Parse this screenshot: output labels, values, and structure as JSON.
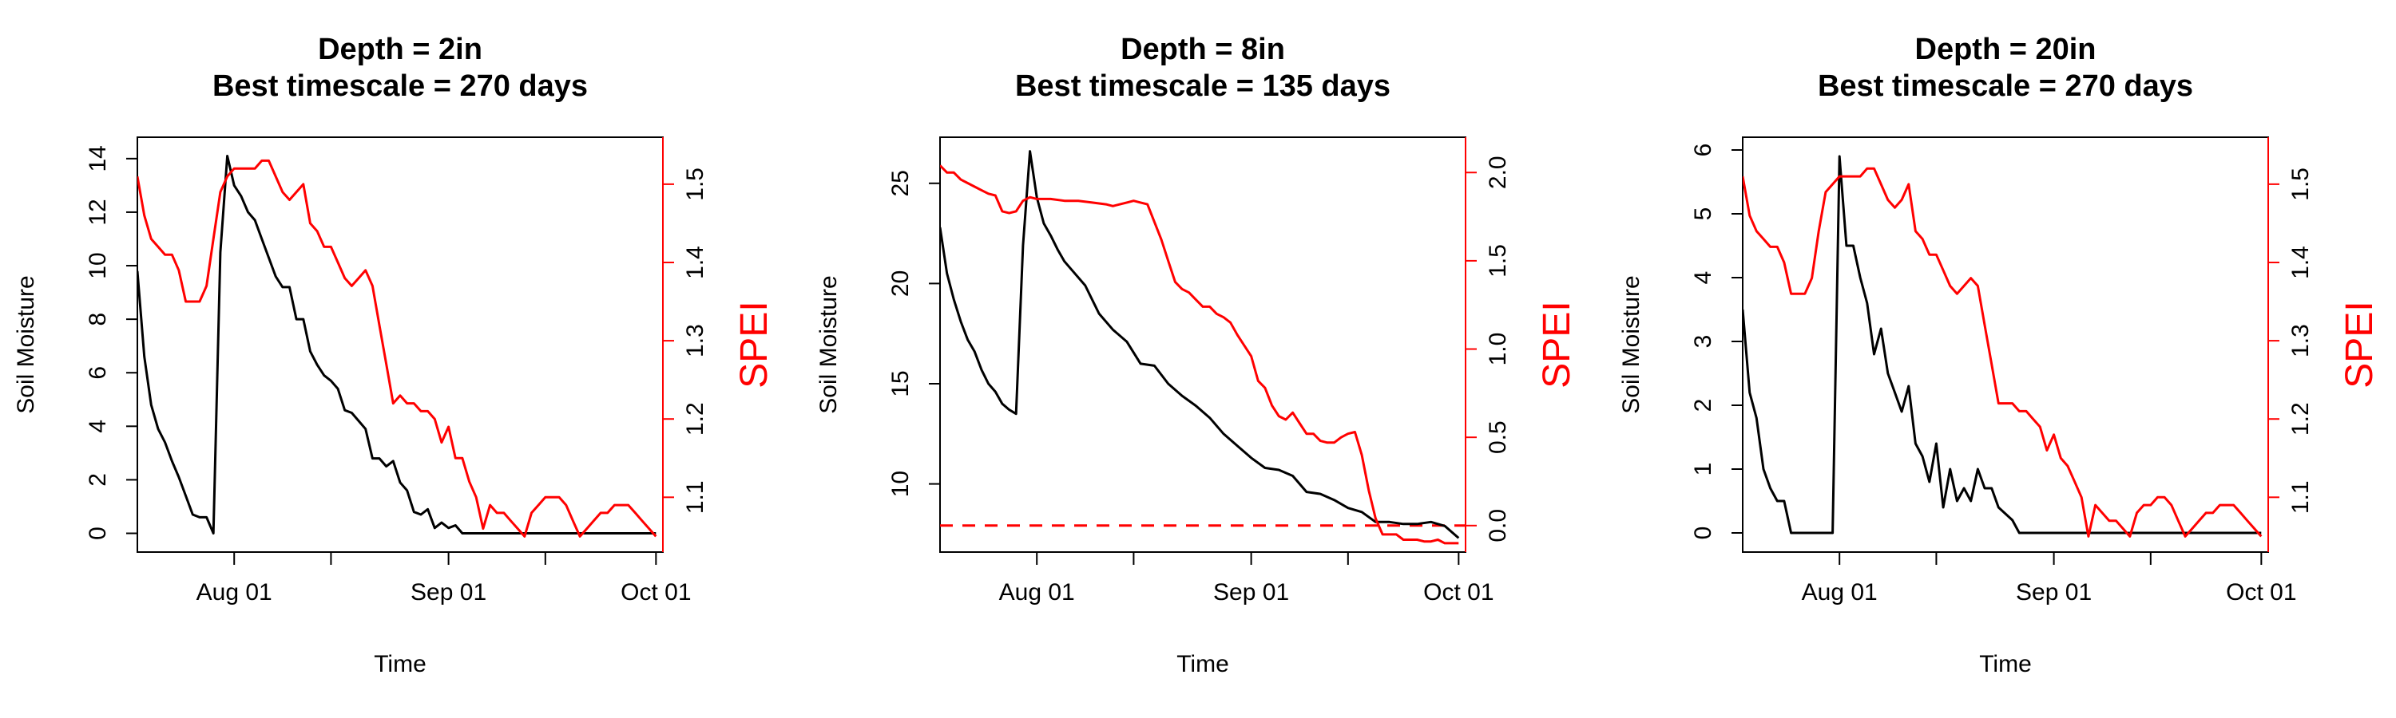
{
  "colors": {
    "soil_moisture": "#000000",
    "spei": "#ff0000"
  },
  "chart_data": [
    {
      "type": "line",
      "title": [
        "Depth = 2in",
        "Best timescale = 270 days"
      ],
      "xlabel": "Time",
      "ylabel": "Soil Moisture",
      "y2label": "SPEI",
      "x_ticks": [
        "Aug 01",
        "Sep 01",
        "Oct 01"
      ],
      "x_unlabeled_ticks": [
        "2018-08-15",
        "2018-09-15"
      ],
      "xlim": [
        "2018-07-18",
        "2018-10-02"
      ],
      "ylim": [
        -0.7,
        14.8
      ],
      "y_ticks": [
        0,
        2,
        4,
        6,
        8,
        10,
        12,
        14
      ],
      "y2lim": [
        1.03,
        1.56
      ],
      "y2_ticks": [
        1.1,
        1.2,
        1.3,
        1.4,
        1.5
      ],
      "series": [
        {
          "axis": "left",
          "color": "#000000",
          "x": [
            "2018-07-18",
            "2018-07-19",
            "2018-07-20",
            "2018-07-21",
            "2018-07-22",
            "2018-07-23",
            "2018-07-24",
            "2018-07-25",
            "2018-07-26",
            "2018-07-27",
            "2018-07-28",
            "2018-07-29",
            "2018-07-30",
            "2018-07-31",
            "2018-08-01",
            "2018-08-02",
            "2018-08-03",
            "2018-08-04",
            "2018-08-05",
            "2018-08-06",
            "2018-08-07",
            "2018-08-08",
            "2018-08-09",
            "2018-08-10",
            "2018-08-11",
            "2018-08-12",
            "2018-08-13",
            "2018-08-14",
            "2018-08-15",
            "2018-08-16",
            "2018-08-17",
            "2018-08-18",
            "2018-08-19",
            "2018-08-20",
            "2018-08-21",
            "2018-08-22",
            "2018-08-23",
            "2018-08-24",
            "2018-08-25",
            "2018-08-26",
            "2018-08-27",
            "2018-08-28",
            "2018-08-29",
            "2018-08-30",
            "2018-08-31",
            "2018-09-01",
            "2018-09-02",
            "2018-09-03",
            "2018-09-04",
            "2018-09-05",
            "2018-09-06",
            "2018-09-07",
            "2018-09-08",
            "2018-09-09",
            "2018-09-10",
            "2018-09-15",
            "2018-09-20",
            "2018-09-25",
            "2018-09-30",
            "2018-10-01"
          ],
          "y": [
            9.8,
            6.6,
            4.8,
            3.9,
            3.4,
            2.7,
            2.1,
            1.4,
            0.7,
            0.6,
            0.6,
            0.0,
            10.5,
            14.1,
            13.0,
            12.6,
            12.0,
            11.7,
            11.0,
            10.3,
            9.6,
            9.2,
            9.2,
            8.0,
            8.0,
            6.8,
            6.3,
            5.9,
            5.7,
            5.4,
            4.6,
            4.5,
            4.2,
            3.9,
            2.8,
            2.8,
            2.5,
            2.7,
            1.9,
            1.6,
            0.8,
            0.7,
            0.9,
            0.2,
            0.4,
            0.2,
            0.3,
            0.0,
            0.0,
            0.0,
            0.0,
            0.0,
            0.0,
            0.0,
            0.0,
            0.0,
            0.0,
            0.0,
            0.0,
            0.0
          ]
        },
        {
          "axis": "right",
          "color": "#ff0000",
          "x": [
            "2018-07-18",
            "2018-07-19",
            "2018-07-20",
            "2018-07-21",
            "2018-07-22",
            "2018-07-23",
            "2018-07-24",
            "2018-07-25",
            "2018-07-26",
            "2018-07-27",
            "2018-07-28",
            "2018-07-29",
            "2018-07-30",
            "2018-07-31",
            "2018-08-01",
            "2018-08-02",
            "2018-08-03",
            "2018-08-04",
            "2018-08-05",
            "2018-08-06",
            "2018-08-07",
            "2018-08-08",
            "2018-08-09",
            "2018-08-10",
            "2018-08-11",
            "2018-08-12",
            "2018-08-13",
            "2018-08-14",
            "2018-08-15",
            "2018-08-16",
            "2018-08-17",
            "2018-08-18",
            "2018-08-19",
            "2018-08-20",
            "2018-08-21",
            "2018-08-22",
            "2018-08-23",
            "2018-08-24",
            "2018-08-25",
            "2018-08-26",
            "2018-08-27",
            "2018-08-28",
            "2018-08-29",
            "2018-08-30",
            "2018-08-31",
            "2018-09-01",
            "2018-09-02",
            "2018-09-03",
            "2018-09-04",
            "2018-09-05",
            "2018-09-06",
            "2018-09-07",
            "2018-09-08",
            "2018-09-09",
            "2018-09-10",
            "2018-09-11",
            "2018-09-12",
            "2018-09-13",
            "2018-09-14",
            "2018-09-15",
            "2018-09-16",
            "2018-09-17",
            "2018-09-18",
            "2018-09-19",
            "2018-09-20",
            "2018-09-21",
            "2018-09-22",
            "2018-09-23",
            "2018-09-24",
            "2018-09-25",
            "2018-09-26",
            "2018-09-27",
            "2018-09-28",
            "2018-09-29",
            "2018-09-30",
            "2018-10-01"
          ],
          "y": [
            1.51,
            1.46,
            1.43,
            1.42,
            1.41,
            1.41,
            1.39,
            1.35,
            1.35,
            1.35,
            1.37,
            1.43,
            1.49,
            1.51,
            1.52,
            1.52,
            1.52,
            1.52,
            1.53,
            1.53,
            1.51,
            1.49,
            1.48,
            1.49,
            1.5,
            1.45,
            1.44,
            1.42,
            1.42,
            1.4,
            1.38,
            1.37,
            1.38,
            1.39,
            1.37,
            1.32,
            1.27,
            1.22,
            1.23,
            1.22,
            1.22,
            1.21,
            1.21,
            1.2,
            1.17,
            1.19,
            1.15,
            1.15,
            1.12,
            1.1,
            1.06,
            1.09,
            1.08,
            1.08,
            1.07,
            1.06,
            1.05,
            1.08,
            1.09,
            1.1,
            1.1,
            1.1,
            1.09,
            1.07,
            1.05,
            1.06,
            1.07,
            1.08,
            1.08,
            1.09,
            1.09,
            1.09,
            1.08,
            1.07,
            1.06,
            1.05
          ]
        }
      ]
    },
    {
      "type": "line",
      "title": [
        "Depth = 8in",
        "Best timescale = 135 days"
      ],
      "xlabel": "Time",
      "ylabel": "Soil Moisture",
      "y2label": "SPEI",
      "x_ticks": [
        "Aug 01",
        "Sep 01",
        "Oct 01"
      ],
      "x_unlabeled_ticks": [
        "2018-08-15",
        "2018-09-15"
      ],
      "xlim": [
        "2018-07-18",
        "2018-10-02"
      ],
      "ylim": [
        6.6,
        27.3
      ],
      "y_ticks": [
        10,
        15,
        20,
        25
      ],
      "y2lim": [
        -0.15,
        2.2
      ],
      "y2_ticks": [
        0.0,
        0.5,
        1.0,
        1.5,
        2.0
      ],
      "reference_line": {
        "axis": "right",
        "y": 0.0,
        "style": "dashed",
        "color": "#ff0000"
      },
      "series": [
        {
          "axis": "left",
          "color": "#000000",
          "x": [
            "2018-07-18",
            "2018-07-19",
            "2018-07-20",
            "2018-07-21",
            "2018-07-22",
            "2018-07-23",
            "2018-07-24",
            "2018-07-25",
            "2018-07-26",
            "2018-07-27",
            "2018-07-28",
            "2018-07-29",
            "2018-07-30",
            "2018-07-31",
            "2018-08-01",
            "2018-08-02",
            "2018-08-03",
            "2018-08-04",
            "2018-08-05",
            "2018-08-06",
            "2018-08-08",
            "2018-08-10",
            "2018-08-12",
            "2018-08-14",
            "2018-08-16",
            "2018-08-18",
            "2018-08-20",
            "2018-08-22",
            "2018-08-24",
            "2018-08-26",
            "2018-08-28",
            "2018-08-30",
            "2018-09-01",
            "2018-09-03",
            "2018-09-05",
            "2018-09-07",
            "2018-09-09",
            "2018-09-11",
            "2018-09-13",
            "2018-09-15",
            "2018-09-17",
            "2018-09-19",
            "2018-09-21",
            "2018-09-23",
            "2018-09-25",
            "2018-09-27",
            "2018-09-29",
            "2018-09-30",
            "2018-10-01"
          ],
          "y": [
            22.8,
            20.5,
            19.2,
            18.1,
            17.2,
            16.6,
            15.7,
            15.0,
            14.6,
            14.0,
            13.7,
            13.5,
            21.9,
            26.6,
            24.3,
            23.0,
            22.4,
            21.7,
            21.1,
            20.7,
            19.9,
            18.5,
            17.7,
            17.1,
            16.0,
            15.9,
            15.0,
            14.4,
            13.9,
            13.3,
            12.5,
            11.9,
            11.3,
            10.8,
            10.7,
            10.4,
            9.6,
            9.5,
            9.2,
            8.8,
            8.6,
            8.1,
            8.1,
            8.0,
            8.0,
            8.1,
            7.9,
            7.6,
            7.3
          ]
        },
        {
          "axis": "right",
          "color": "#ff0000",
          "x": [
            "2018-07-18",
            "2018-07-19",
            "2018-07-20",
            "2018-07-21",
            "2018-07-22",
            "2018-07-23",
            "2018-07-24",
            "2018-07-25",
            "2018-07-26",
            "2018-07-27",
            "2018-07-28",
            "2018-07-29",
            "2018-07-30",
            "2018-07-31",
            "2018-08-01",
            "2018-08-03",
            "2018-08-05",
            "2018-08-07",
            "2018-08-09",
            "2018-08-11",
            "2018-08-12",
            "2018-08-14",
            "2018-08-15",
            "2018-08-16",
            "2018-08-17",
            "2018-08-18",
            "2018-08-19",
            "2018-08-20",
            "2018-08-21",
            "2018-08-22",
            "2018-08-23",
            "2018-08-24",
            "2018-08-25",
            "2018-08-26",
            "2018-08-27",
            "2018-08-28",
            "2018-08-29",
            "2018-08-30",
            "2018-08-31",
            "2018-09-01",
            "2018-09-02",
            "2018-09-03",
            "2018-09-04",
            "2018-09-05",
            "2018-09-06",
            "2018-09-07",
            "2018-09-08",
            "2018-09-09",
            "2018-09-10",
            "2018-09-11",
            "2018-09-12",
            "2018-09-13",
            "2018-09-14",
            "2018-09-15",
            "2018-09-16",
            "2018-09-17",
            "2018-09-18",
            "2018-09-19",
            "2018-09-20",
            "2018-09-21",
            "2018-09-22",
            "2018-09-23",
            "2018-09-24",
            "2018-09-25",
            "2018-09-26",
            "2018-09-27",
            "2018-09-28",
            "2018-09-29",
            "2018-09-30",
            "2018-10-01"
          ],
          "y": [
            2.04,
            2.0,
            2.0,
            1.96,
            1.94,
            1.92,
            1.9,
            1.88,
            1.87,
            1.78,
            1.77,
            1.78,
            1.84,
            1.86,
            1.85,
            1.85,
            1.84,
            1.84,
            1.83,
            1.82,
            1.81,
            1.83,
            1.84,
            1.83,
            1.82,
            1.72,
            1.62,
            1.5,
            1.38,
            1.34,
            1.32,
            1.28,
            1.24,
            1.24,
            1.2,
            1.18,
            1.15,
            1.08,
            1.02,
            0.96,
            0.82,
            0.78,
            0.68,
            0.62,
            0.6,
            0.64,
            0.58,
            0.52,
            0.52,
            0.48,
            0.47,
            0.47,
            0.5,
            0.52,
            0.53,
            0.4,
            0.2,
            0.04,
            -0.05,
            -0.05,
            -0.05,
            -0.08,
            -0.08,
            -0.08,
            -0.09,
            -0.09,
            -0.08,
            -0.1,
            -0.1,
            -0.1
          ]
        }
      ]
    },
    {
      "type": "line",
      "title": [
        "Depth = 20in",
        "Best timescale = 270 days"
      ],
      "xlabel": "Time",
      "ylabel": "Soil Moisture",
      "y2label": "SPEI",
      "x_ticks": [
        "Aug 01",
        "Sep 01",
        "Oct 01"
      ],
      "x_unlabeled_ticks": [
        "2018-08-15",
        "2018-09-15"
      ],
      "xlim": [
        "2018-07-18",
        "2018-10-02"
      ],
      "ylim": [
        -0.3,
        6.2
      ],
      "y_ticks": [
        0,
        1,
        2,
        3,
        4,
        5,
        6
      ],
      "y2lim": [
        1.03,
        1.56
      ],
      "y2_ticks": [
        1.1,
        1.2,
        1.3,
        1.4,
        1.5
      ],
      "series": [
        {
          "axis": "left",
          "color": "#000000",
          "x": [
            "2018-07-18",
            "2018-07-19",
            "2018-07-20",
            "2018-07-21",
            "2018-07-22",
            "2018-07-23",
            "2018-07-24",
            "2018-07-25",
            "2018-07-26",
            "2018-07-27",
            "2018-07-28",
            "2018-07-29",
            "2018-07-30",
            "2018-07-31",
            "2018-08-01",
            "2018-08-02",
            "2018-08-03",
            "2018-08-04",
            "2018-08-05",
            "2018-08-06",
            "2018-08-07",
            "2018-08-08",
            "2018-08-09",
            "2018-08-10",
            "2018-08-11",
            "2018-08-12",
            "2018-08-13",
            "2018-08-14",
            "2018-08-15",
            "2018-08-16",
            "2018-08-17",
            "2018-08-18",
            "2018-08-19",
            "2018-08-20",
            "2018-08-21",
            "2018-08-22",
            "2018-08-23",
            "2018-08-24",
            "2018-08-25",
            "2018-08-26",
            "2018-08-27",
            "2018-08-28",
            "2018-08-29",
            "2018-08-30",
            "2018-10-01"
          ],
          "y": [
            3.5,
            2.2,
            1.8,
            1.0,
            0.7,
            0.5,
            0.5,
            0.0,
            0.0,
            0.0,
            0.0,
            0.0,
            0.0,
            0.0,
            5.9,
            4.5,
            4.5,
            4.0,
            3.6,
            2.8,
            3.2,
            2.5,
            2.2,
            1.9,
            2.3,
            1.4,
            1.2,
            0.8,
            1.4,
            0.4,
            1.0,
            0.5,
            0.7,
            0.5,
            1.0,
            0.7,
            0.7,
            0.4,
            0.3,
            0.2,
            0.0,
            0.0,
            0.0,
            0.0,
            0.0
          ]
        },
        {
          "axis": "right",
          "color": "#ff0000",
          "x": [
            "2018-07-18",
            "2018-07-19",
            "2018-07-20",
            "2018-07-21",
            "2018-07-22",
            "2018-07-23",
            "2018-07-24",
            "2018-07-25",
            "2018-07-26",
            "2018-07-27",
            "2018-07-28",
            "2018-07-29",
            "2018-07-30",
            "2018-07-31",
            "2018-08-01",
            "2018-08-02",
            "2018-08-03",
            "2018-08-04",
            "2018-08-05",
            "2018-08-06",
            "2018-08-07",
            "2018-08-08",
            "2018-08-09",
            "2018-08-10",
            "2018-08-11",
            "2018-08-12",
            "2018-08-13",
            "2018-08-14",
            "2018-08-15",
            "2018-08-16",
            "2018-08-17",
            "2018-08-18",
            "2018-08-19",
            "2018-08-20",
            "2018-08-21",
            "2018-08-22",
            "2018-08-23",
            "2018-08-24",
            "2018-08-25",
            "2018-08-26",
            "2018-08-27",
            "2018-08-28",
            "2018-08-29",
            "2018-08-30",
            "2018-08-31",
            "2018-09-01",
            "2018-09-02",
            "2018-09-03",
            "2018-09-04",
            "2018-09-05",
            "2018-09-06",
            "2018-09-07",
            "2018-09-08",
            "2018-09-09",
            "2018-09-10",
            "2018-09-11",
            "2018-09-12",
            "2018-09-13",
            "2018-09-14",
            "2018-09-15",
            "2018-09-16",
            "2018-09-17",
            "2018-09-18",
            "2018-09-19",
            "2018-09-20",
            "2018-09-21",
            "2018-09-22",
            "2018-09-23",
            "2018-09-24",
            "2018-09-25",
            "2018-09-26",
            "2018-09-27",
            "2018-09-28",
            "2018-09-29",
            "2018-09-30",
            "2018-10-01"
          ],
          "y": [
            1.51,
            1.46,
            1.44,
            1.43,
            1.42,
            1.42,
            1.4,
            1.36,
            1.36,
            1.36,
            1.38,
            1.44,
            1.49,
            1.5,
            1.51,
            1.51,
            1.51,
            1.51,
            1.52,
            1.52,
            1.5,
            1.48,
            1.47,
            1.48,
            1.5,
            1.44,
            1.43,
            1.41,
            1.41,
            1.39,
            1.37,
            1.36,
            1.37,
            1.38,
            1.37,
            1.32,
            1.27,
            1.22,
            1.22,
            1.22,
            1.21,
            1.21,
            1.2,
            1.19,
            1.16,
            1.18,
            1.15,
            1.14,
            1.12,
            1.1,
            1.05,
            1.09,
            1.08,
            1.07,
            1.07,
            1.06,
            1.05,
            1.08,
            1.09,
            1.09,
            1.1,
            1.1,
            1.09,
            1.07,
            1.05,
            1.06,
            1.07,
            1.08,
            1.08,
            1.09,
            1.09,
            1.09,
            1.08,
            1.07,
            1.06,
            1.05
          ]
        }
      ]
    }
  ]
}
